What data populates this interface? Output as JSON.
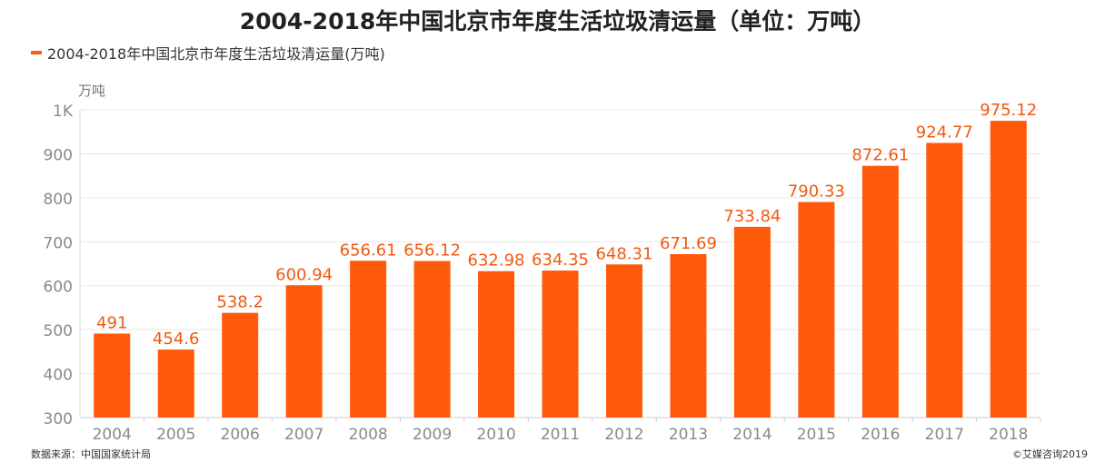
{
  "title": "2004-2018年中国北京市年度生活垃圾清运量（单位：万吨）",
  "source": "数据来源：中国国家统计局",
  "copyright": "©艾媒咨询2019",
  "colors": {
    "bar": "#ff5a09",
    "label": "#ef5a10",
    "grid": "#e8e8e8",
    "tick": "#8a8a8a"
  },
  "chart_data": {
    "type": "bar",
    "title": "2004-2018年中国北京市年度生活垃圾清运量（单位：万吨）",
    "ylabel": "万吨",
    "xlabel": "",
    "ylim": [
      300,
      1000
    ],
    "yticks": [
      300,
      400,
      500,
      600,
      700,
      800,
      900,
      1000
    ],
    "ytick_labels": [
      "300",
      "400",
      "500",
      "600",
      "700",
      "800",
      "900",
      "1K"
    ],
    "grid": true,
    "legend_position": "top-left",
    "categories": [
      "2004",
      "2005",
      "2006",
      "2007",
      "2008",
      "2009",
      "2010",
      "2011",
      "2012",
      "2013",
      "2014",
      "2015",
      "2016",
      "2017",
      "2018"
    ],
    "series": [
      {
        "name": "2004-2018年中国北京市年度生活垃圾清运量(万吨)",
        "values": [
          491,
          454.6,
          538.2,
          600.94,
          656.61,
          656.12,
          632.98,
          634.35,
          648.31,
          671.69,
          733.84,
          790.33,
          872.61,
          924.77,
          975.12
        ],
        "labels": [
          "491",
          "454.6",
          "538.2",
          "600.94",
          "656.61",
          "656.12",
          "632.98",
          "634.35",
          "648.31",
          "671.69",
          "733.84",
          "790.33",
          "872.61",
          "924.77",
          "975.12"
        ]
      }
    ]
  }
}
